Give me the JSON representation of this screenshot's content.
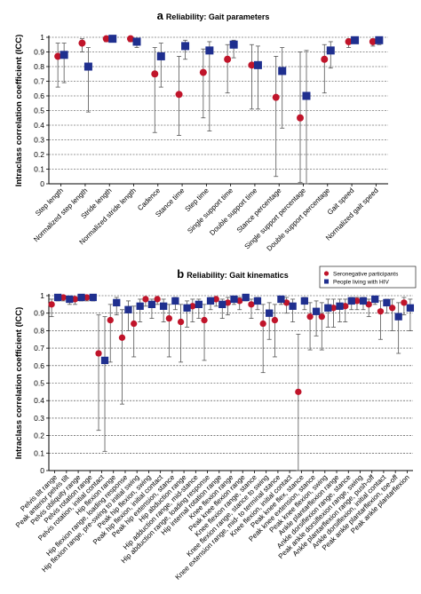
{
  "chart_data": [
    {
      "type": "scatter",
      "panel_letter": "a",
      "title": "Reliability: Gait parameters",
      "ylabel": "Intraclass correlation coefficient (ICC)",
      "xlabel": "",
      "ylim": [
        0,
        1
      ],
      "yticks": [
        "0",
        "0.1",
        "0.2",
        "0.3",
        "0.4",
        "0.5",
        "0.6",
        "0.7",
        "0.8",
        "0.9",
        "1"
      ],
      "grid": "horizontal dashed",
      "colors": {
        "seronegative": "#c0142a",
        "hiv": "#1f2f8f"
      },
      "categories": [
        "Step length",
        "Normalized step length",
        "Stride length",
        "Normalized stride length",
        "Cadence",
        "Stance time",
        "Step time",
        "Single support time",
        "Double support time",
        "Stance percentage",
        "Single support percentage",
        "Double support percentage",
        "Gait speed",
        "Normalized gait speed"
      ],
      "series": [
        {
          "key": "seronegative",
          "values": [
            0.87,
            0.96,
            0.99,
            0.99,
            0.75,
            0.61,
            0.76,
            0.85,
            0.81,
            0.59,
            0.45,
            0.85,
            0.97,
            0.97
          ],
          "lower": [
            0.66,
            0.9,
            0.97,
            0.97,
            0.35,
            0.33,
            0.45,
            0.62,
            0.51,
            0.05,
            0.01,
            0.62,
            0.93,
            0.94
          ],
          "upper": [
            0.96,
            0.99,
            1.0,
            1.0,
            0.93,
            0.87,
            0.92,
            0.95,
            0.95,
            0.87,
            0.9,
            0.95,
            0.99,
            0.99
          ]
        },
        {
          "key": "hiv",
          "values": [
            0.88,
            0.8,
            0.99,
            0.97,
            0.87,
            0.94,
            0.91,
            0.95,
            0.81,
            0.77,
            0.6,
            0.91,
            0.98,
            0.98
          ],
          "lower": [
            0.69,
            0.49,
            0.97,
            0.93,
            0.66,
            0.85,
            0.36,
            0.86,
            0.51,
            0.38,
            0.0,
            0.79,
            0.96,
            0.95
          ],
          "upper": [
            0.96,
            0.93,
            1.0,
            0.99,
            0.96,
            0.98,
            0.97,
            0.98,
            0.94,
            0.93,
            0.91,
            0.97,
            0.99,
            0.99
          ]
        }
      ]
    },
    {
      "type": "scatter",
      "panel_letter": "b",
      "title": "Reliability: Gait kinematics",
      "ylabel": "Intraclass correlation coefficient (ICC)",
      "xlabel": "",
      "ylim": [
        0,
        1
      ],
      "yticks": [
        "0",
        "0.1",
        "0.2",
        "0.3",
        "0.4",
        "0.5",
        "0.6",
        "0.7",
        "0.8",
        "0.9",
        "1"
      ],
      "grid": "horizontal dashed",
      "legend_position": "top-right",
      "legend": [
        {
          "key": "seronegative",
          "label": "Seronegative participants"
        },
        {
          "key": "hiv",
          "label": "People living with HIV"
        }
      ],
      "colors": {
        "seronegative": "#c0142a",
        "hiv": "#1f2f8f"
      },
      "categories": [
        "Pelvis tilt range",
        "Peak anterior pelvis tilt",
        "Pelvis obliquity range",
        "Pelvis rotation range",
        "Pelvis rotation, initial contact",
        "Hip flexion range",
        "Hip flexion range, loading response",
        "Hip flexion range, pre-swing to initial swing",
        "Peak hip flexion, swing",
        "Peak hip flexion, initial contact",
        "Peak hip extension, stance",
        "Hip abduction range",
        "Hip adduction range, mid-stance",
        "Hip abduction range, loading response",
        "Hip internal rotation range",
        "Knee flexion range",
        "Peak knee flexion range",
        "Knee flexion range, stance",
        "Knee flexion range, stance to swing",
        "Knee extension range, mid- to terminal stance",
        "Knee flexion, initial contact",
        "Peak knee flex, stance",
        "Peak knee extension, stance",
        "Peak knee flexion, swing",
        "Ankle plantarflexion range",
        "Ankle dorsiflexion range, stance",
        "Peak ankle dorsiflexion range, swing",
        "Ankle plantarflexion range, push-off",
        "Ankle dorsiflexion, initial contact",
        "Peak ankle plantarflexion, toe-off",
        "Peak ankle plantarflexion"
      ],
      "series": [
        {
          "key": "seronegative",
          "values": [
            0.95,
            0.99,
            0.98,
            0.99,
            0.67,
            0.86,
            0.76,
            0.84,
            0.98,
            0.98,
            0.87,
            0.85,
            0.94,
            0.86,
            0.98,
            0.96,
            0.97,
            0.95,
            0.84,
            0.86,
            0.96,
            0.45,
            0.88,
            0.88,
            0.93,
            0.94,
            0.97,
            0.95,
            0.91,
            0.93,
            0.96
          ],
          "lower": [
            0.88,
            0.97,
            0.95,
            0.97,
            0.23,
            0.62,
            0.38,
            0.65,
            0.94,
            0.95,
            0.65,
            0.62,
            0.85,
            0.63,
            0.94,
            0.89,
            0.92,
            0.87,
            0.56,
            0.65,
            0.9,
            0.0,
            0.69,
            0.69,
            0.82,
            0.85,
            0.92,
            0.88,
            0.75,
            0.8,
            0.89
          ],
          "upper": [
            0.98,
            1.0,
            0.99,
            1.0,
            0.89,
            0.95,
            0.92,
            0.94,
            0.99,
            0.99,
            0.95,
            0.95,
            0.98,
            0.95,
            0.99,
            0.99,
            0.99,
            0.98,
            0.95,
            0.95,
            0.99,
            0.78,
            0.96,
            0.96,
            0.98,
            0.98,
            0.99,
            0.98,
            0.97,
            0.98,
            0.99
          ]
        },
        {
          "key": "hiv",
          "values": [
            0.99,
            0.98,
            0.99,
            0.99,
            0.63,
            0.96,
            0.92,
            0.94,
            0.95,
            0.94,
            0.97,
            0.93,
            0.95,
            0.97,
            0.95,
            0.98,
            0.99,
            0.97,
            0.9,
            0.98,
            0.94,
            0.97,
            0.91,
            0.93,
            0.94,
            0.97,
            0.97,
            0.98,
            0.96,
            0.88,
            0.93
          ],
          "lower": [
            0.97,
            0.95,
            0.97,
            0.97,
            0.11,
            0.89,
            0.8,
            0.85,
            0.87,
            0.85,
            0.92,
            0.82,
            0.87,
            0.92,
            0.87,
            0.95,
            0.97,
            0.92,
            0.75,
            0.95,
            0.85,
            0.92,
            0.77,
            0.82,
            0.85,
            0.92,
            0.92,
            0.95,
            0.9,
            0.67,
            0.8
          ],
          "upper": [
            1.0,
            0.99,
            1.0,
            1.0,
            0.88,
            0.99,
            0.97,
            0.98,
            0.98,
            0.98,
            0.99,
            0.97,
            0.98,
            0.99,
            0.98,
            0.99,
            1.0,
            0.99,
            0.96,
            0.99,
            0.98,
            0.99,
            0.97,
            0.98,
            0.98,
            0.99,
            0.99,
            0.99,
            0.98,
            0.96,
            0.98
          ]
        }
      ]
    }
  ]
}
